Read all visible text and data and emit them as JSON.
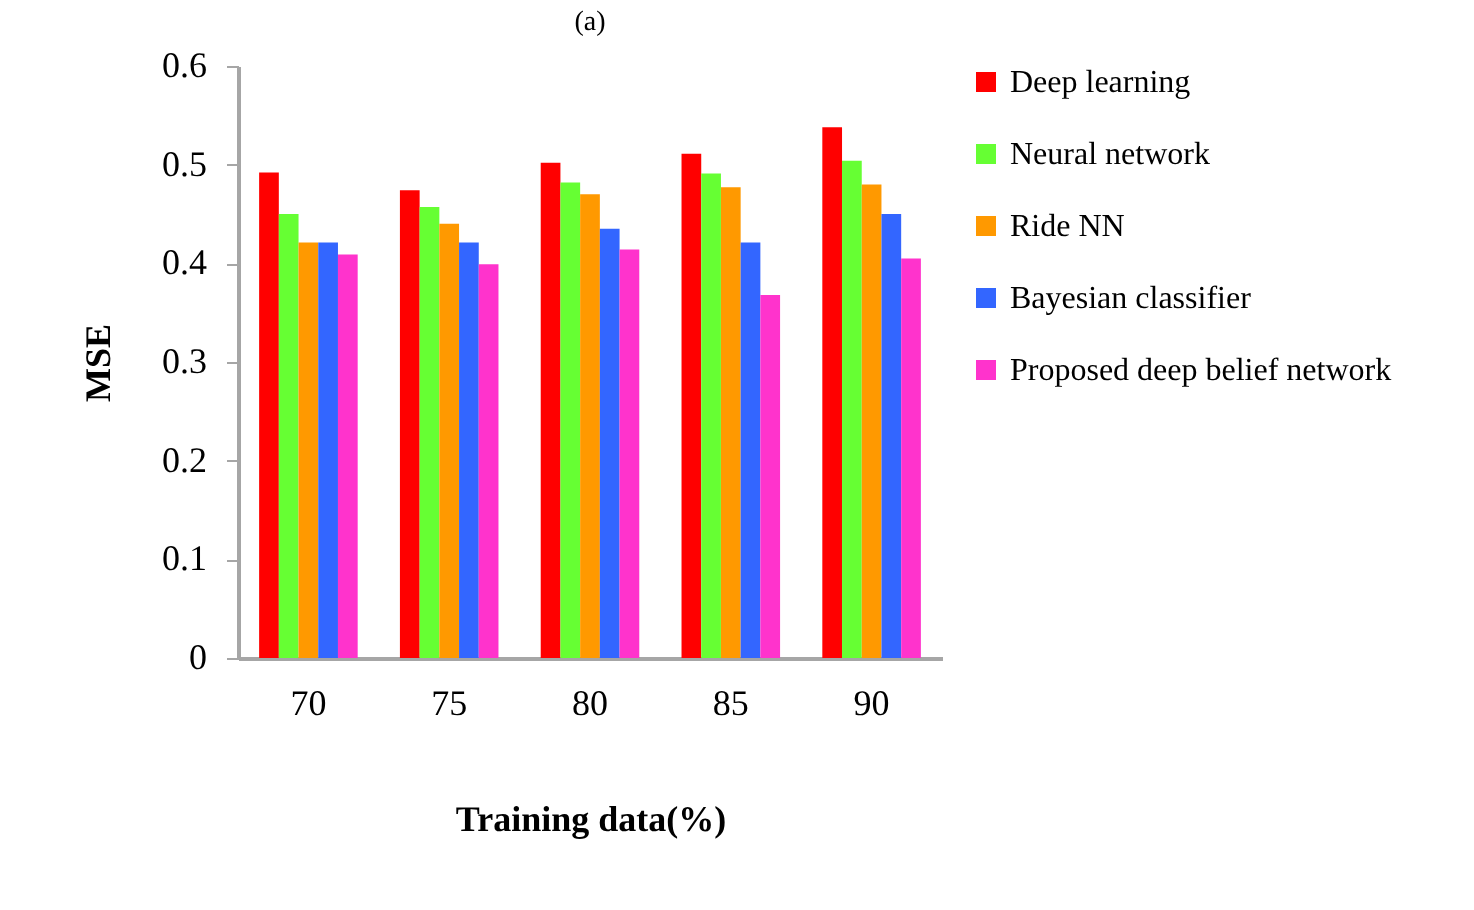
{
  "chart_data": {
    "type": "bar",
    "title": "(a)",
    "xlabel": "Training data(%)",
    "ylabel": "MSE",
    "categories": [
      "70",
      "75",
      "80",
      "85",
      "90"
    ],
    "series": [
      {
        "name": "Deep learning",
        "color": "#ff0000",
        "values": [
          0.492,
          0.474,
          0.502,
          0.511,
          0.538
        ]
      },
      {
        "name": "Neural network",
        "color": "#66ff33",
        "values": [
          0.45,
          0.457,
          0.482,
          0.491,
          0.504
        ]
      },
      {
        "name": "Ride NN",
        "color": "#ff9900",
        "values": [
          0.421,
          0.44,
          0.47,
          0.477,
          0.48
        ]
      },
      {
        "name": "Bayesian classifier",
        "color": "#3366ff",
        "values": [
          0.421,
          0.421,
          0.435,
          0.421,
          0.45
        ]
      },
      {
        "name": "Proposed deep belief network",
        "color": "#ff33cc",
        "values": [
          0.409,
          0.399,
          0.414,
          0.368,
          0.405
        ]
      }
    ],
    "ylim": [
      0,
      0.6
    ],
    "yticks": [
      0,
      0.1,
      0.2,
      0.3,
      0.4,
      0.5,
      0.6
    ],
    "grid": false,
    "legend": "right"
  }
}
